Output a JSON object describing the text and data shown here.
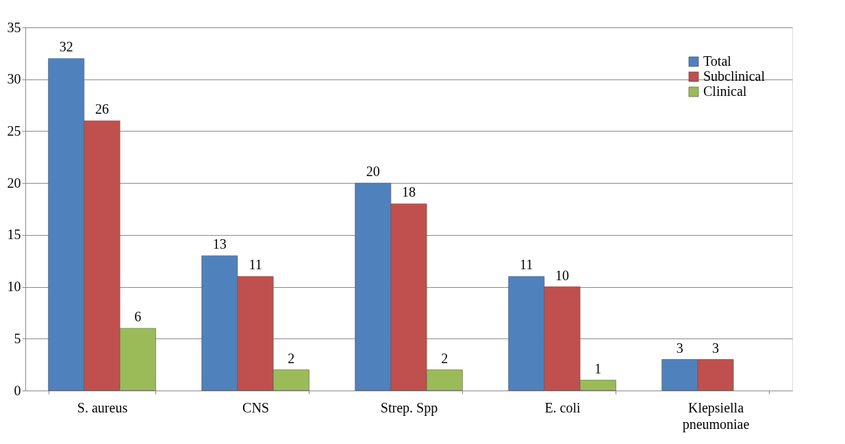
{
  "chart_data": {
    "type": "bar",
    "categories": [
      "S. aureus",
      "CNS",
      "Strep. Spp",
      "E. coli",
      "Klepsiella pneumoniae"
    ],
    "series": [
      {
        "name": "Total",
        "color": "#4f81bd",
        "values": [
          32,
          13,
          20,
          11,
          3
        ]
      },
      {
        "name": "Subclinical",
        "color": "#c0504d",
        "values": [
          26,
          11,
          18,
          10,
          3
        ]
      },
      {
        "name": "Clinical",
        "color": "#9bbb59",
        "values": [
          6,
          2,
          2,
          1,
          null
        ]
      }
    ],
    "ylim": [
      0,
      35
    ],
    "yticks": [
      0,
      5,
      10,
      15,
      20,
      25,
      30,
      35
    ],
    "grid": "y",
    "legend": "top right",
    "data_labels": true
  }
}
